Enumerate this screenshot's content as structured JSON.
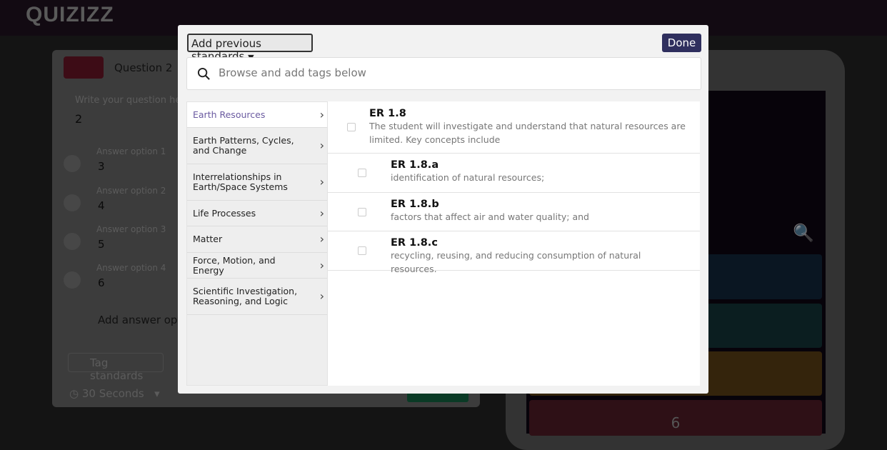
{
  "app": {
    "logo": "QUIZIZZ"
  },
  "editor": {
    "question_label": "Question 2",
    "question_hint": "Write your question here",
    "question_value": "2",
    "answers": [
      {
        "hint": "Answer option 1",
        "value": "3"
      },
      {
        "hint": "Answer option 2",
        "value": "4"
      },
      {
        "hint": "Answer option 3",
        "value": "5"
      },
      {
        "hint": "Answer option 4",
        "value": "6"
      }
    ],
    "add_answer": "Add answer option",
    "tag_standards": "Tag standards",
    "timer": "30 Seconds"
  },
  "preview": {
    "last_option": "6",
    "option_colors": [
      "#2d7fd0",
      "#1fa8a8",
      "#f2a705",
      "#d13a4a"
    ]
  },
  "modal": {
    "dropdown_label": "Add previous standards",
    "done_label": "Done",
    "search_placeholder": "Browse and add tags below",
    "categories": [
      {
        "label": "Earth Resources",
        "active": true
      },
      {
        "label": "Earth Patterns, Cycles, and Change"
      },
      {
        "label": "Interrelationships in Earth/Space Systems"
      },
      {
        "label": "Life Processes"
      },
      {
        "label": "Matter"
      },
      {
        "label": "Force, Motion, and Energy"
      },
      {
        "label": "Scientific Investigation, Reasoning, and Logic"
      }
    ],
    "standards": [
      {
        "code": "ER 1.8",
        "desc": "The student will investigate and understand that natural resources are limited. Key concepts include",
        "checked": false
      },
      {
        "code": "ER 1.8.a",
        "desc": "identification of natural resources;",
        "checked": false
      },
      {
        "code": "ER 1.8.b",
        "desc": "factors that affect air and water quality; and",
        "checked": false
      },
      {
        "code": "ER 1.8.c",
        "desc": "recycling, reusing, and reducing consumption of natural resources.",
        "checked": false
      }
    ]
  }
}
